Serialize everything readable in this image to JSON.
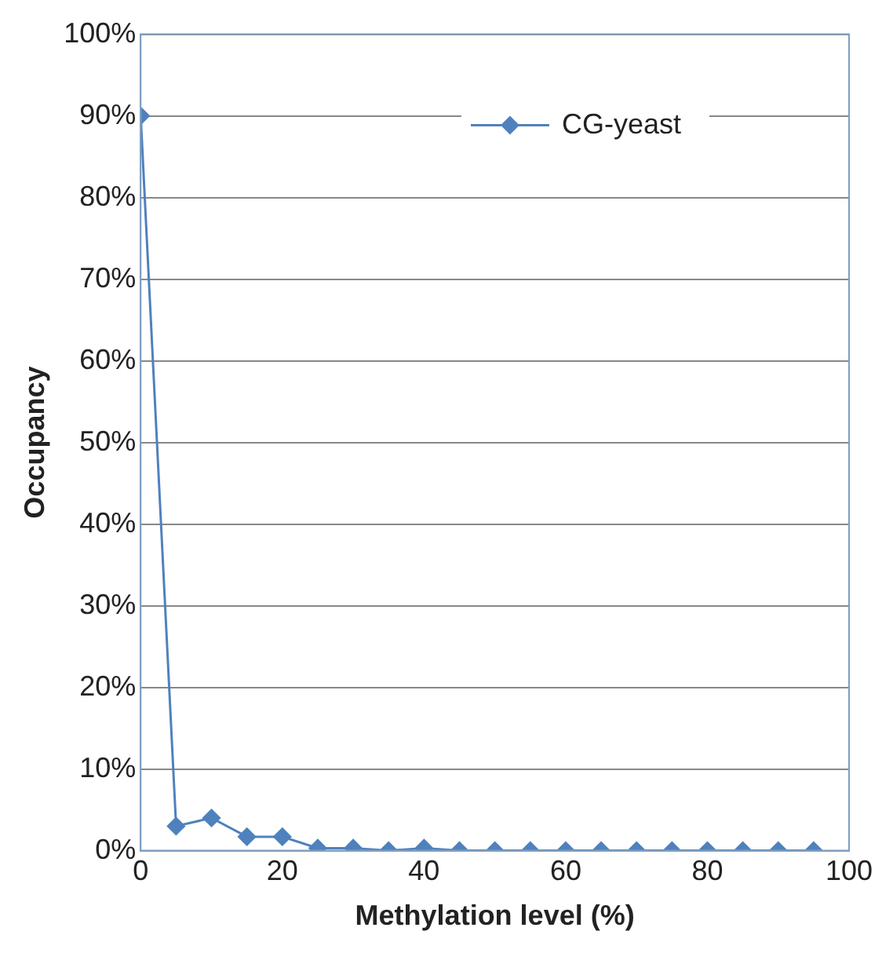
{
  "chart_data": {
    "type": "line",
    "xlabel": "Methylation level (%)",
    "ylabel": "Occupancy",
    "x": [
      0,
      5,
      10,
      15,
      20,
      25,
      30,
      35,
      40,
      45,
      50,
      55,
      60,
      65,
      70,
      75,
      80,
      85,
      90,
      95
    ],
    "series": [
      {
        "name": "CG-yeast",
        "color": "#4f81bd",
        "values": [
          90,
          3,
          4,
          1.7,
          1.7,
          0.3,
          0.3,
          0,
          0.3,
          0,
          0,
          0,
          0,
          0,
          0,
          0,
          0,
          0,
          0,
          0
        ]
      }
    ],
    "xlim": [
      0,
      100
    ],
    "xticks": [
      0,
      20,
      40,
      60,
      80,
      100
    ],
    "ylim": [
      0,
      100
    ],
    "yticks": [
      {
        "value": 0,
        "label": "0%"
      },
      {
        "value": 10,
        "label": "10%"
      },
      {
        "value": 20,
        "label": "20%"
      },
      {
        "value": 30,
        "label": "30%"
      },
      {
        "value": 40,
        "label": "40%"
      },
      {
        "value": 50,
        "label": "50%"
      },
      {
        "value": 60,
        "label": "60%"
      },
      {
        "value": 70,
        "label": "70%"
      },
      {
        "value": 80,
        "label": "80%"
      },
      {
        "value": 90,
        "label": "90%"
      },
      {
        "value": 100,
        "label": "100%"
      }
    ],
    "grid": "y",
    "legend": "top right",
    "marker": "diamond",
    "line_style": "solid"
  }
}
